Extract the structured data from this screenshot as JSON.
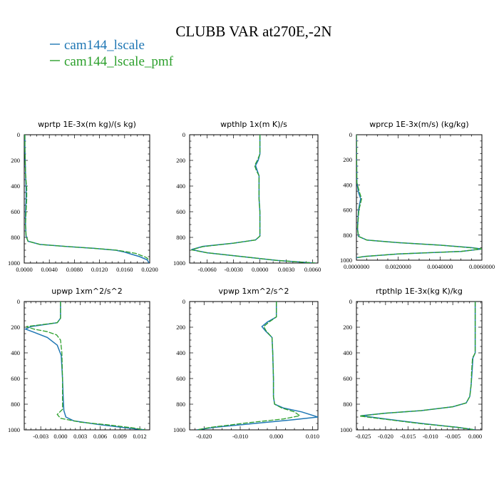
{
  "title": "CLUBB VAR at270E,-2N",
  "colors": {
    "cam144_lscale": "#1f77b4",
    "cam144_lscale_pmf": "#2ca02c"
  },
  "legend": [
    {
      "name": "cam144_lscale",
      "color": "#1f77b4",
      "dash": "solid"
    },
    {
      "name": "cam144_lscale_pmf",
      "color": "#2ca02c",
      "dash": "dashed"
    }
  ],
  "chart_data": [
    {
      "type": "line",
      "title": "wprtp  1E-3x(m kg)/(s kg)",
      "xlim": [
        0,
        0.02
      ],
      "ylim": [
        1000,
        0
      ],
      "y_inverted": true,
      "x_ticks": [
        "0.0000",
        "0.0040",
        "0.0080",
        "0.0120",
        "0.0160",
        "0.0200"
      ],
      "x_tick_values": [
        0,
        0.004,
        0.008,
        0.012,
        0.016,
        0.02
      ],
      "y_ticks": [
        0,
        200,
        400,
        600,
        800,
        1000
      ],
      "series": [
        {
          "name": "cam144_lscale",
          "x": [
            0.0001,
            0.0001,
            0.0002,
            0.0003,
            0.0003,
            0.0002,
            0.0002,
            0.0003,
            0.0006,
            0.0025,
            0.0065,
            0.011,
            0.0146,
            0.016,
            0.017,
            0.0184,
            0.0196,
            0.0199
          ],
          "y": [
            0,
            100,
            300,
            420,
            500,
            600,
            700,
            790,
            830,
            855,
            870,
            885,
            900,
            915,
            930,
            950,
            975,
            1000
          ]
        },
        {
          "name": "cam144_lscale_pmf",
          "x": [
            0.0001,
            0.0001,
            0.0002,
            0.0004,
            0.0004,
            0.0003,
            0.0002,
            0.0003,
            0.0006,
            0.0025,
            0.0065,
            0.011,
            0.0148,
            0.0163,
            0.0178,
            0.0194,
            0.0199
          ],
          "y": [
            0,
            100,
            300,
            420,
            500,
            600,
            700,
            790,
            830,
            855,
            870,
            885,
            900,
            912,
            925,
            955,
            975
          ]
        }
      ]
    },
    {
      "type": "line",
      "title": "wpthlp  1x(m K)/s",
      "xlim": [
        -0.008,
        0.0066
      ],
      "ylim": [
        1000,
        0
      ],
      "y_inverted": true,
      "x_ticks": [
        "-0.0060",
        "-0.0030",
        "0.0000",
        "0.0030",
        "0.0060"
      ],
      "x_tick_values": [
        -0.006,
        -0.003,
        0,
        0.003,
        0.006
      ],
      "y_ticks": [
        0,
        200,
        400,
        600,
        800,
        1000
      ],
      "series": [
        {
          "name": "cam144_lscale",
          "x": [
            0.0,
            0.0,
            -0.0002,
            -0.0005,
            -0.0003,
            -0.0001,
            -0.0001,
            -0.0001,
            0.0,
            0.0,
            0.0,
            -0.0005,
            -0.003,
            -0.0065,
            -0.0078,
            -0.006,
            -0.002,
            0.002,
            0.0063
          ],
          "y": [
            0,
            150,
            200,
            240,
            280,
            320,
            400,
            500,
            600,
            700,
            790,
            820,
            845,
            870,
            895,
            920,
            950,
            980,
            1000
          ]
        },
        {
          "name": "cam144_lscale_pmf",
          "x": [
            0.0,
            0.0,
            -0.0003,
            -0.0006,
            -0.0004,
            -0.0001,
            -0.0001,
            -0.0001,
            0.0,
            0.0,
            0.0,
            -0.0005,
            -0.003,
            -0.0065,
            -0.0078,
            -0.006,
            -0.002,
            0.002,
            0.0063
          ],
          "y": [
            0,
            150,
            200,
            240,
            280,
            320,
            400,
            500,
            600,
            700,
            790,
            820,
            845,
            872,
            897,
            920,
            950,
            980,
            1000
          ]
        }
      ]
    },
    {
      "type": "line",
      "title": "wprcp  1E-3x(m/s) (kg/kg)",
      "xlim": [
        0,
        0.006
      ],
      "ylim": [
        1000,
        0
      ],
      "y_inverted": true,
      "x_ticks": [
        "0.0000000",
        "0.0020000",
        "0.0040000",
        "0.0060000"
      ],
      "x_tick_values": [
        0,
        0.002,
        0.004,
        0.006
      ],
      "y_ticks": [
        0,
        200,
        400,
        600,
        800,
        1000
      ],
      "series": [
        {
          "name": "cam144_lscale",
          "x": [
            0.0,
            1e-05,
            2e-05,
            0.0001,
            0.0002,
            0.0001,
            5e-05,
            0.0001,
            0.0005,
            0.002,
            0.004,
            0.0055,
            0.006,
            0.005,
            0.002,
            0.0004,
            0.0
          ],
          "y": [
            0,
            200,
            380,
            460,
            510,
            600,
            750,
            810,
            840,
            860,
            880,
            900,
            910,
            930,
            950,
            970,
            980
          ]
        },
        {
          "name": "cam144_lscale_pmf",
          "x": [
            0.0,
            1e-05,
            2e-05,
            0.00015,
            0.00025,
            0.00012,
            5e-05,
            0.0001,
            0.0005,
            0.002,
            0.004,
            0.0054,
            0.006,
            0.005,
            0.002,
            0.0004,
            0.0
          ],
          "y": [
            0,
            200,
            380,
            460,
            510,
            600,
            750,
            810,
            840,
            860,
            880,
            900,
            910,
            930,
            950,
            970,
            980
          ]
        }
      ]
    },
    {
      "type": "line",
      "title": "upwp   1xm^2/s^2",
      "xlim": [
        -0.0055,
        0.0135
      ],
      "ylim": [
        1000,
        0
      ],
      "y_inverted": true,
      "x_ticks": [
        "-0.003",
        "0.000",
        "0.003",
        "0.006",
        "0.009",
        "0.012"
      ],
      "x_tick_values": [
        -0.003,
        0,
        0.003,
        0.006,
        0.009,
        0.012
      ],
      "y_ticks": [
        0,
        200,
        400,
        600,
        800,
        1000
      ],
      "series": [
        {
          "name": "cam144_lscale",
          "x": [
            0.0,
            0.0,
            -0.0005,
            -0.0045,
            -0.0053,
            -0.004,
            -0.002,
            -0.0005,
            0.0001,
            0.0003,
            0.0004,
            0.0005,
            0.0008,
            0.002,
            0.006,
            0.01,
            0.0128
          ],
          "y": [
            0,
            130,
            165,
            195,
            215,
            240,
            280,
            340,
            420,
            600,
            750,
            850,
            900,
            930,
            960,
            985,
            1000
          ]
        },
        {
          "name": "cam144_lscale_pmf",
          "x": [
            0.0,
            0.0,
            -0.0005,
            -0.0052,
            -0.004,
            -0.002,
            -0.0006,
            0.0,
            0.0002,
            0.0003,
            0.0003,
            -0.0005,
            0.0,
            0.003,
            0.007,
            0.011,
            0.0128
          ],
          "y": [
            0,
            130,
            165,
            195,
            215,
            235,
            260,
            300,
            400,
            600,
            840,
            880,
            910,
            940,
            960,
            985,
            1000
          ]
        }
      ]
    },
    {
      "type": "line",
      "title": "vpwp   1xm^2/s^2",
      "xlim": [
        -0.024,
        0.0115
      ],
      "ylim": [
        1000,
        0
      ],
      "y_inverted": true,
      "x_ticks": [
        "-0.020",
        "-0.010",
        "0.000",
        "0.010"
      ],
      "x_tick_values": [
        -0.02,
        -0.01,
        0,
        0.01
      ],
      "y_ticks": [
        0,
        200,
        400,
        600,
        800,
        1000
      ],
      "series": [
        {
          "name": "cam144_lscale",
          "x": [
            0.0,
            0.0,
            -0.0025,
            -0.004,
            -0.003,
            -0.0012,
            -0.001,
            -0.0008,
            -0.0008,
            -0.0005,
            0.002,
            0.007,
            0.0115,
            0.005,
            -0.006,
            -0.017,
            -0.022
          ],
          "y": [
            0,
            120,
            160,
            195,
            230,
            280,
            400,
            600,
            740,
            800,
            830,
            860,
            900,
            920,
            950,
            980,
            1000
          ]
        },
        {
          "name": "cam144_lscale_pmf",
          "x": [
            0.0,
            0.0,
            -0.002,
            -0.0035,
            -0.0028,
            -0.0012,
            -0.001,
            -0.0008,
            -0.0008,
            -0.0005,
            0.0015,
            0.005,
            0.0065,
            0.002,
            -0.008,
            -0.018,
            -0.022
          ],
          "y": [
            0,
            120,
            160,
            195,
            230,
            280,
            400,
            600,
            740,
            800,
            830,
            860,
            890,
            915,
            945,
            980,
            1000
          ]
        }
      ]
    },
    {
      "type": "line",
      "title": "rtpthlp  1E-3x(kg K)/kg",
      "xlim": [
        -0.0265,
        0.0015
      ],
      "ylim": [
        1000,
        0
      ],
      "y_inverted": true,
      "x_ticks": [
        "-0.025",
        "-0.020",
        "-0.015",
        "-0.010",
        "-0.005",
        "0.000"
      ],
      "x_tick_values": [
        -0.025,
        -0.02,
        -0.015,
        -0.01,
        -0.005,
        0
      ],
      "y_ticks": [
        0,
        200,
        400,
        600,
        800,
        1000
      ],
      "series": [
        {
          "name": "cam144_lscale",
          "x": [
            0.0,
            0.0,
            -0.0005,
            -0.0007,
            -0.0009,
            -0.0012,
            -0.002,
            -0.005,
            -0.012,
            -0.02,
            -0.0255,
            -0.02,
            -0.012,
            -0.004,
            0.0
          ],
          "y": [
            0,
            400,
            440,
            550,
            650,
            740,
            790,
            820,
            850,
            870,
            890,
            915,
            950,
            980,
            1000
          ]
        },
        {
          "name": "cam144_lscale_pmf",
          "x": [
            0.0,
            0.0,
            -0.0006,
            -0.0008,
            -0.0009,
            -0.0012,
            -0.002,
            -0.005,
            -0.012,
            -0.02,
            -0.0258,
            -0.02,
            -0.012,
            -0.004,
            0.0
          ],
          "y": [
            0,
            400,
            440,
            550,
            650,
            740,
            790,
            820,
            850,
            870,
            893,
            918,
            952,
            980,
            1000
          ]
        }
      ]
    }
  ]
}
